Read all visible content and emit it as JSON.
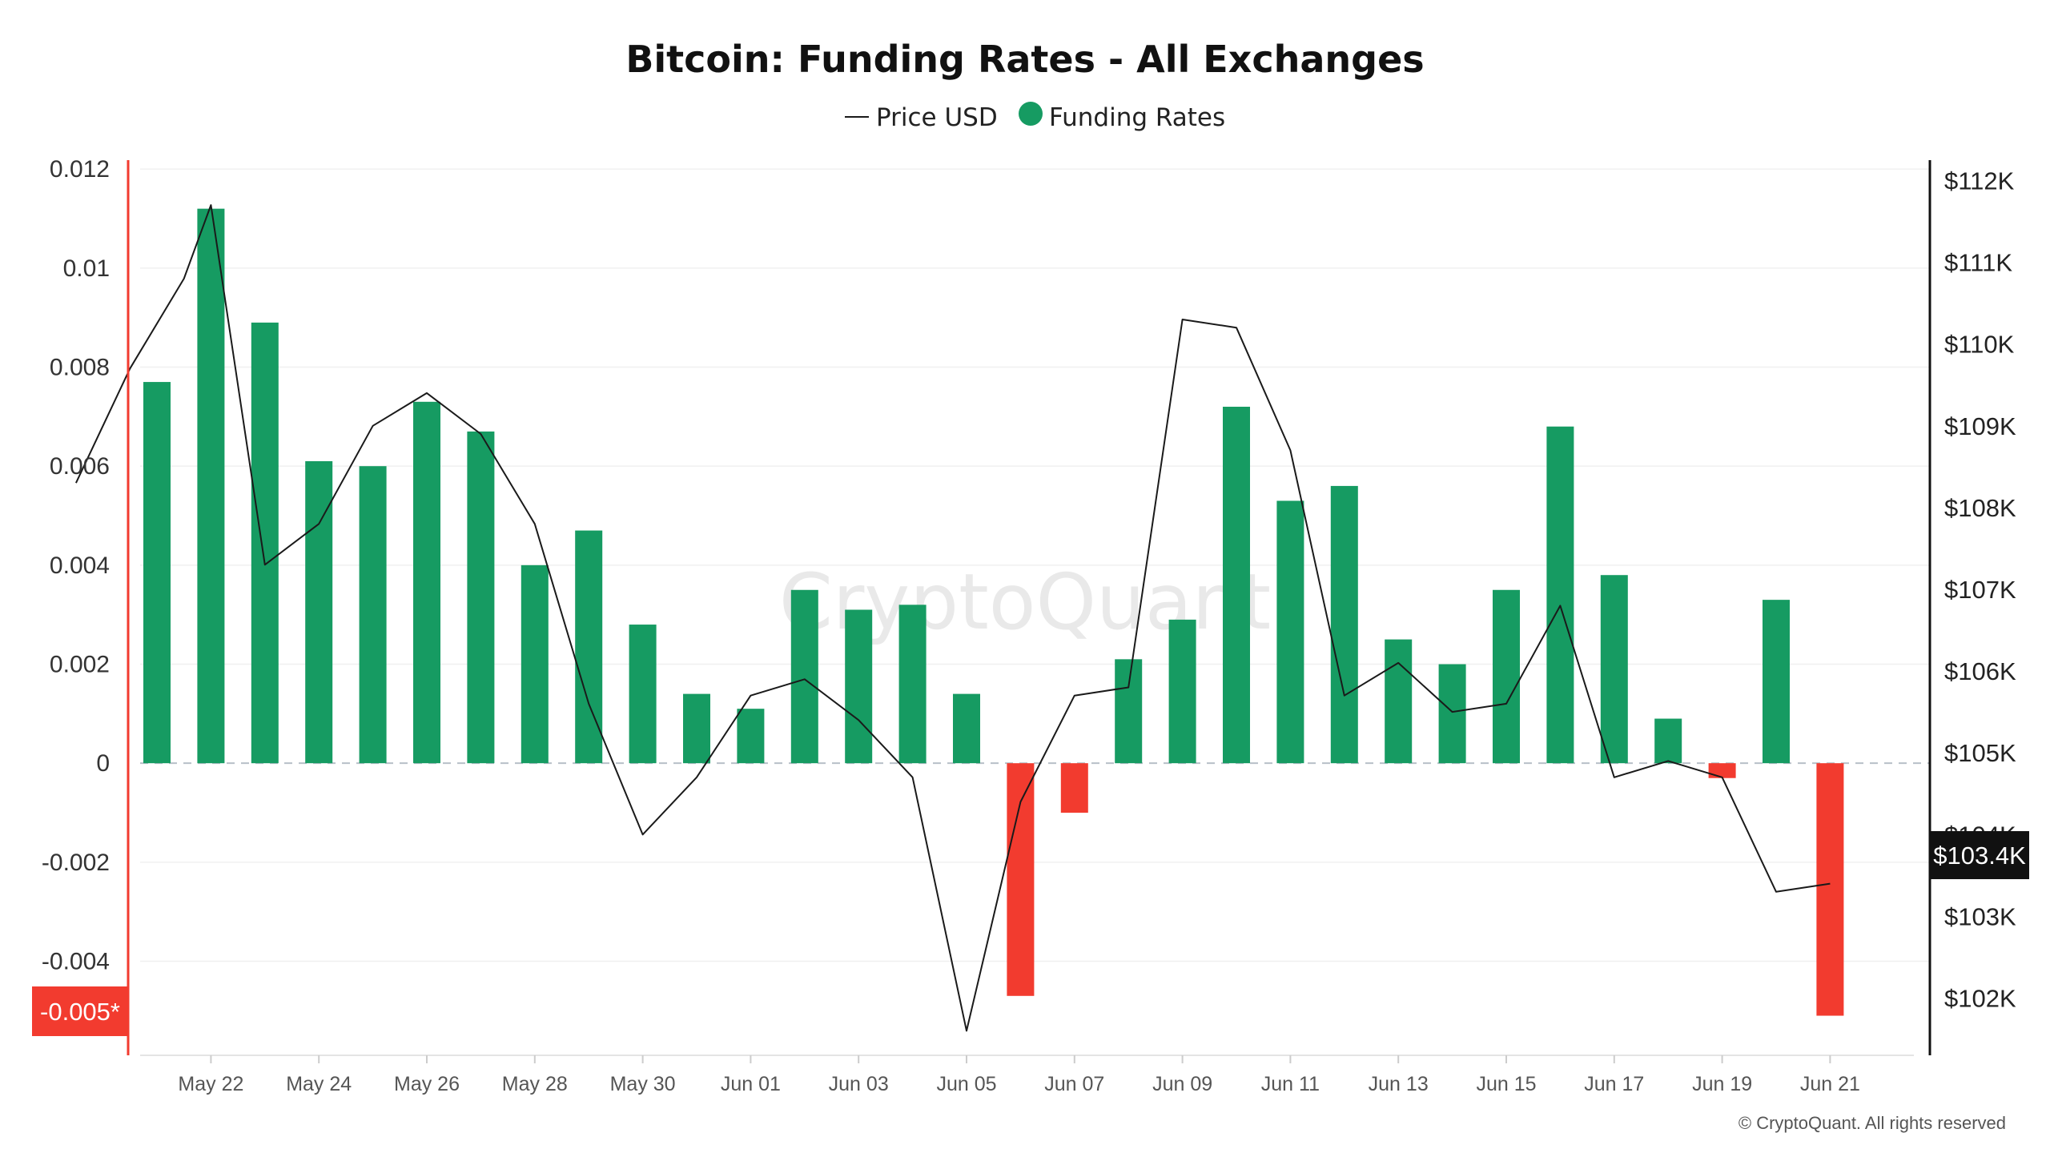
{
  "chart_data": {
    "type": "bar",
    "title": "Bitcoin: Funding Rates - All Exchanges",
    "legend": [
      "Price USD",
      "Funding Rates"
    ],
    "legend_placement": "top-center",
    "watermark": "CryptoQuant",
    "copyright": "© CryptoQuant. All rights reserved",
    "colors": {
      "positive": "#169b62",
      "negative": "#f23b2f",
      "price_line": "#1a1a1a",
      "left_axis": "#f23b2f",
      "right_axis": "#111111"
    },
    "x_tick_labels": [
      "May 22",
      "May 24",
      "May 26",
      "May 28",
      "May 30",
      "Jun 01",
      "Jun 03",
      "Jun 05",
      "Jun 07",
      "Jun 09",
      "Jun 11",
      "Jun 13",
      "Jun 15",
      "Jun 17",
      "Jun 19",
      "Jun 21"
    ],
    "x_tick_days": [
      1,
      3,
      5,
      7,
      9,
      11,
      13,
      15,
      17,
      19,
      21,
      23,
      25,
      27,
      29,
      31
    ],
    "y_left": {
      "ticks": [
        "0.012",
        "0.01",
        "0.008",
        "0.006",
        "0.004",
        "0.002",
        "0",
        "-0.002",
        "-0.004"
      ],
      "tick_values": [
        0.012,
        0.01,
        0.008,
        0.006,
        0.004,
        0.002,
        0,
        -0.002,
        -0.004
      ],
      "ylim": [
        -0.0059,
        0.0121
      ]
    },
    "y_right": {
      "ticks": [
        "$112K",
        "$111K",
        "$110K",
        "$109K",
        "$108K",
        "$107K",
        "$106K",
        "$105K",
        "$104K",
        "$103K",
        "$102K"
      ],
      "tick_values": [
        112000,
        111000,
        110000,
        109000,
        108000,
        107000,
        106000,
        105000,
        104000,
        103000,
        102000
      ],
      "ylim": [
        101300,
        112200
      ]
    },
    "current_funding_label": "-0.005*",
    "current_price_label": "$103.4K",
    "series": [
      {
        "name": "Funding Rates",
        "days": [
          0,
          1,
          2,
          3,
          4,
          5,
          6,
          7,
          8,
          9,
          10,
          11,
          12,
          13,
          14,
          15,
          16,
          17,
          18,
          19,
          20,
          21,
          22,
          23,
          24,
          25,
          26,
          27,
          28,
          29,
          30,
          31
        ],
        "values": [
          0.0077,
          0.0112,
          0.0089,
          0.0061,
          0.006,
          0.0073,
          0.0067,
          0.004,
          0.0047,
          0.0028,
          0.0014,
          0.0011,
          0.0035,
          0.0031,
          0.0032,
          0.0014,
          -0.0047,
          -0.001,
          0.0021,
          0.0029,
          0.0072,
          0.0053,
          0.0056,
          0.0025,
          0.002,
          0.0035,
          0.0068,
          0.0038,
          0.0009,
          -0.0003,
          0.0033,
          -0.0051
        ]
      },
      {
        "name": "Price USD",
        "days": [
          -1.5,
          -0.5,
          0.5,
          1,
          2,
          3,
          4,
          5,
          6,
          7,
          8,
          9,
          10,
          11,
          12,
          13,
          14,
          15,
          16,
          17,
          18,
          19,
          20,
          21,
          22,
          23,
          24,
          25,
          26,
          27,
          28,
          29,
          30,
          31
        ],
        "values": [
          108300,
          109700,
          110800,
          111700,
          107300,
          107800,
          109000,
          109400,
          108900,
          107800,
          105600,
          104000,
          104700,
          105700,
          105900,
          105400,
          104700,
          101600,
          104400,
          105700,
          105800,
          110300,
          110200,
          108700,
          105700,
          106100,
          105500,
          105600,
          106800,
          104700,
          104900,
          104700,
          103300,
          103400
        ]
      }
    ]
  }
}
